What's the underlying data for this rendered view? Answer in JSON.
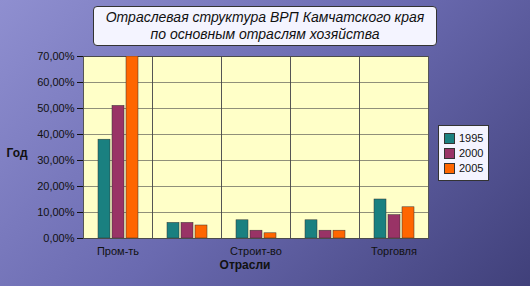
{
  "chart_data": {
    "type": "bar",
    "title": "Отраслевая структура ВРП Камчатского края по основным отраслям хозяйства",
    "x_label": "Отрасли",
    "y_label": "Год",
    "categories": [
      "Пром-ть",
      null,
      "Строит-во",
      null,
      "Торговля"
    ],
    "series": [
      {
        "name": "1995",
        "color": "#1a8080",
        "values": [
          38,
          6,
          7,
          7,
          15
        ]
      },
      {
        "name": "2000",
        "color": "#993366",
        "values": [
          51,
          6,
          3,
          3,
          9
        ]
      },
      {
        "name": "2005",
        "color": "#ff6600",
        "values": [
          70,
          5,
          2,
          3,
          12
        ]
      }
    ],
    "ylim": [
      0,
      70
    ],
    "yticks": [
      {
        "value": 0,
        "label": "0,00%"
      },
      {
        "value": 10,
        "label": "10,00%"
      },
      {
        "value": 20,
        "label": "20,00%"
      },
      {
        "value": 30,
        "label": "30,00%"
      },
      {
        "value": 40,
        "label": "40,00%"
      },
      {
        "value": 50,
        "label": "50,00%"
      },
      {
        "value": 60,
        "label": "60,00%"
      },
      {
        "value": 70,
        "label": "70,00%"
      }
    ],
    "grid": true,
    "legend": "right"
  }
}
